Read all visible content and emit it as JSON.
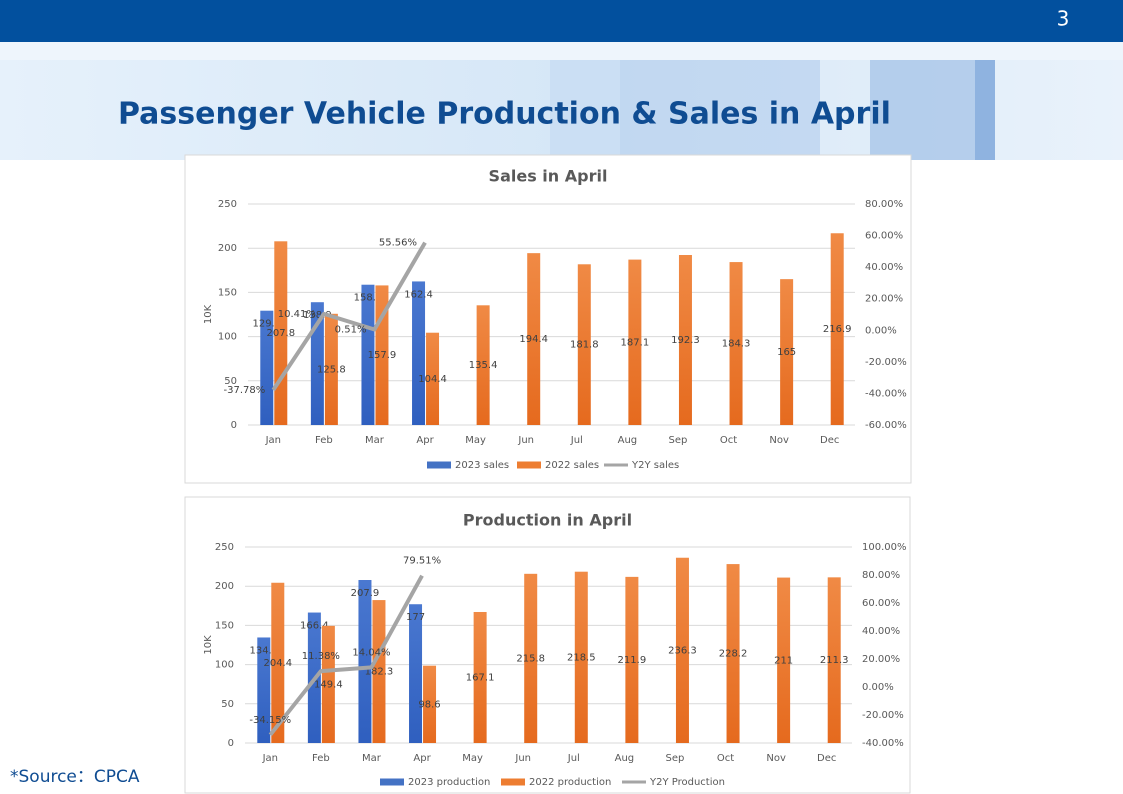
{
  "page_number": "3",
  "title": "Passenger Vehicle Production & Sales in April",
  "source": "*Source：CPCA",
  "chart_data": [
    {
      "type": "bar",
      "title": "Sales in April",
      "ylabel": "10K",
      "categories": [
        "Jan",
        "Feb",
        "Mar",
        "Apr",
        "May",
        "Jun",
        "Jul",
        "Aug",
        "Sep",
        "Oct",
        "Nov",
        "Dec"
      ],
      "series": [
        {
          "name": "2023 sales",
          "color": "#4472c4",
          "values": [
            129.3,
            138.9,
            158.7,
            162.4,
            null,
            null,
            null,
            null,
            null,
            null,
            null,
            null
          ]
        },
        {
          "name": "2022 sales",
          "color": "#ed7d31",
          "values": [
            207.8,
            125.8,
            157.9,
            104.4,
            135.4,
            194.4,
            181.8,
            187.1,
            192.3,
            184.3,
            165,
            216.9
          ]
        },
        {
          "name": "Y2Y sales",
          "type": "line",
          "axis": "y2",
          "color": "#a5a5a5",
          "values": [
            -37.78,
            10.41,
            0.51,
            55.56,
            null,
            null,
            null,
            null,
            null,
            null,
            null,
            null
          ],
          "value_labels": [
            "-37.78%",
            "10.41%",
            "0.51%",
            "55.56%",
            null,
            null,
            null,
            null,
            null,
            null,
            null,
            null
          ]
        }
      ],
      "ylim": [
        0,
        250
      ],
      "yticks": [
        0,
        50,
        100,
        150,
        200,
        250
      ],
      "y2lim": [
        -60,
        80
      ],
      "y2ticks": [
        {
          "value": -60,
          "label": "-60.00%"
        },
        {
          "value": -40,
          "label": "-40.00%"
        },
        {
          "value": -20,
          "label": "-20.00%"
        },
        {
          "value": 0,
          "label": "0.00%"
        },
        {
          "value": 20,
          "label": "20.00%"
        },
        {
          "value": 40,
          "label": "40.00%"
        },
        {
          "value": 60,
          "label": "60.00%"
        },
        {
          "value": 80,
          "label": "80.00%"
        }
      ],
      "grid": true,
      "legend": "bottom"
    },
    {
      "type": "bar",
      "title": "Production in April",
      "ylabel": "10K",
      "categories": [
        "Jan",
        "Feb",
        "Mar",
        "Apr",
        "May",
        "Jun",
        "Jul",
        "Aug",
        "Sep",
        "Oct",
        "Nov",
        "Dec"
      ],
      "series": [
        {
          "name": "2023 production",
          "color": "#4472c4",
          "values": [
            134.6,
            166.4,
            207.9,
            177,
            null,
            null,
            null,
            null,
            null,
            null,
            null,
            null
          ]
        },
        {
          "name": "2022 production",
          "color": "#ed7d31",
          "values": [
            204.4,
            149.4,
            182.3,
            98.6,
            167.1,
            215.8,
            218.5,
            211.9,
            236.3,
            228.2,
            211,
            211.3
          ]
        },
        {
          "name": "Y2Y Production",
          "type": "line",
          "axis": "y2",
          "color": "#a5a5a5",
          "values": [
            -34.15,
            11.38,
            14.04,
            79.51,
            null,
            null,
            null,
            null,
            null,
            null,
            null,
            null
          ],
          "value_labels": [
            "-34.15%",
            "11.38%",
            "14.04%",
            "79.51%",
            null,
            null,
            null,
            null,
            null,
            null,
            null,
            null
          ]
        }
      ],
      "ylim": [
        0,
        250
      ],
      "yticks": [
        0,
        50,
        100,
        150,
        200,
        250
      ],
      "y2lim": [
        -40,
        100
      ],
      "y2ticks": [
        {
          "value": -40,
          "label": "-40.00%"
        },
        {
          "value": -20,
          "label": "-20.00%"
        },
        {
          "value": 0,
          "label": "0.00%"
        },
        {
          "value": 20,
          "label": "20.00%"
        },
        {
          "value": 40,
          "label": "40.00%"
        },
        {
          "value": 60,
          "label": "60.00%"
        },
        {
          "value": 80,
          "label": "80.00%"
        },
        {
          "value": 100,
          "label": "100.00%"
        }
      ],
      "grid": true,
      "legend": "bottom"
    }
  ]
}
